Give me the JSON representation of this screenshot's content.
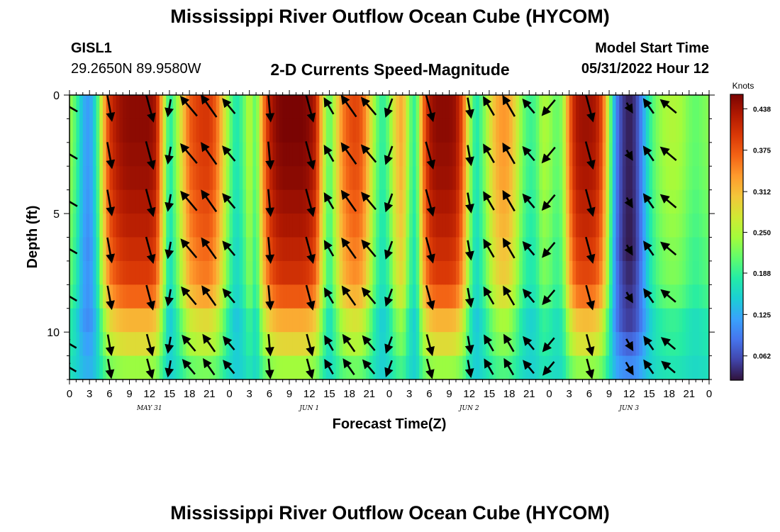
{
  "header": {
    "title": "Mississippi River Outflow Ocean Cube (HYCOM)",
    "station_id": "GISL1",
    "station_coords": "29.2650N  89.9580W",
    "model_start_label": "Model Start Time",
    "model_start_value": "05/31/2022 Hour 12"
  },
  "footer": {
    "title": "Mississippi River Outflow Ocean Cube (HYCOM)"
  },
  "chart_data": {
    "type": "heatmap",
    "title": "2-D Currents Speed-Magnitude",
    "xlabel": "Forecast Time(Z)",
    "ylabel": "Depth (ft)",
    "x_tick_labels": [
      "0",
      "3",
      "6",
      "9",
      "12",
      "15",
      "18",
      "21",
      "0",
      "3",
      "6",
      "9",
      "12",
      "15",
      "18",
      "21",
      "0",
      "3",
      "6",
      "9",
      "12",
      "15",
      "18",
      "21",
      "0",
      "3",
      "6",
      "9",
      "12",
      "15",
      "18",
      "21",
      "0"
    ],
    "day_labels": [
      {
        "label": "MAY 31",
        "hour": 12
      },
      {
        "label": "JUN 1",
        "hour": 36
      },
      {
        "label": "JUN 2",
        "hour": 60
      },
      {
        "label": "JUN 3",
        "hour": 84
      }
    ],
    "x_range_hours": [
      0,
      96
    ],
    "y_ticks": [
      0,
      5,
      10
    ],
    "y_range_ft": [
      0,
      12
    ],
    "depth_levels_ft": [
      0.5,
      1.5,
      2.5,
      3.5,
      4.5,
      5.5,
      6.5,
      7.5,
      8.5,
      9.5,
      10.5,
      11.5
    ],
    "colorbar": {
      "unit": "Knots",
      "tick_labels": [
        "0.438",
        "0.375",
        "0.312",
        "0.250",
        "0.188",
        "0.125",
        "0.062"
      ],
      "tick_values": [
        0.438,
        0.375,
        0.312,
        0.25,
        0.188,
        0.125,
        0.062
      ],
      "range": [
        0.025,
        0.46
      ]
    },
    "colors": {
      "stops": [
        "#30123b",
        "#4145ab",
        "#4675ed",
        "#39a2fc",
        "#1bcfd4",
        "#24eca6",
        "#61fc6c",
        "#a4fc3b",
        "#d1e834",
        "#f3c63a",
        "#fe9b2d",
        "#f36315",
        "#d93806",
        "#b11901",
        "#7a0403"
      ]
    },
    "surface_speed_knots_by_hour": [
      [
        0,
        0.24
      ],
      [
        1,
        0.2
      ],
      [
        2,
        0.13
      ],
      [
        3,
        0.11
      ],
      [
        4,
        0.17
      ],
      [
        5,
        0.3
      ],
      [
        6,
        0.4
      ],
      [
        7,
        0.43
      ],
      [
        8,
        0.445
      ],
      [
        9,
        0.45
      ],
      [
        10,
        0.45
      ],
      [
        11,
        0.45
      ],
      [
        12,
        0.45
      ],
      [
        13,
        0.43
      ],
      [
        14,
        0.3
      ],
      [
        15,
        0.17
      ],
      [
        16,
        0.23
      ],
      [
        17,
        0.3
      ],
      [
        18,
        0.37
      ],
      [
        19,
        0.39
      ],
      [
        20,
        0.4
      ],
      [
        21,
        0.4
      ],
      [
        22,
        0.37
      ],
      [
        23,
        0.3
      ],
      [
        24,
        0.22
      ],
      [
        25,
        0.17
      ],
      [
        26,
        0.2
      ],
      [
        27,
        0.26
      ],
      [
        28,
        0.2
      ],
      [
        29,
        0.34
      ],
      [
        30,
        0.42
      ],
      [
        31,
        0.45
      ],
      [
        32,
        0.46
      ],
      [
        33,
        0.46
      ],
      [
        34,
        0.46
      ],
      [
        35,
        0.46
      ],
      [
        36,
        0.45
      ],
      [
        37,
        0.42
      ],
      [
        38,
        0.29
      ],
      [
        39,
        0.2
      ],
      [
        40,
        0.28
      ],
      [
        41,
        0.35
      ],
      [
        42,
        0.38
      ],
      [
        43,
        0.39
      ],
      [
        44,
        0.37
      ],
      [
        45,
        0.3
      ],
      [
        46,
        0.22
      ],
      [
        47,
        0.18
      ],
      [
        48,
        0.22
      ],
      [
        49,
        0.3
      ],
      [
        50,
        0.33
      ],
      [
        51,
        0.22
      ],
      [
        52,
        0.18
      ],
      [
        53,
        0.35
      ],
      [
        54,
        0.43
      ],
      [
        55,
        0.45
      ],
      [
        56,
        0.45
      ],
      [
        57,
        0.45
      ],
      [
        58,
        0.44
      ],
      [
        59,
        0.38
      ],
      [
        60,
        0.25
      ],
      [
        61,
        0.17
      ],
      [
        62,
        0.21
      ],
      [
        63,
        0.27
      ],
      [
        64,
        0.32
      ],
      [
        65,
        0.34
      ],
      [
        66,
        0.33
      ],
      [
        67,
        0.28
      ],
      [
        68,
        0.22
      ],
      [
        69,
        0.19
      ],
      [
        70,
        0.2
      ],
      [
        71,
        0.25
      ],
      [
        72,
        0.24
      ],
      [
        73,
        0.21
      ],
      [
        74,
        0.23
      ],
      [
        75,
        0.36
      ],
      [
        76,
        0.43
      ],
      [
        77,
        0.44
      ],
      [
        78,
        0.44
      ],
      [
        79,
        0.43
      ],
      [
        80,
        0.38
      ],
      [
        81,
        0.24
      ],
      [
        82,
        0.1
      ],
      [
        83,
        0.05
      ],
      [
        84,
        0.03
      ],
      [
        85,
        0.05
      ],
      [
        86,
        0.11
      ],
      [
        87,
        0.18
      ],
      [
        88,
        0.22
      ],
      [
        89,
        0.24
      ],
      [
        90,
        0.25
      ],
      [
        91,
        0.25
      ],
      [
        92,
        0.24
      ],
      [
        93,
        0.22
      ],
      [
        94,
        0.21
      ],
      [
        95,
        0.22
      ],
      [
        96,
        0.23
      ]
    ],
    "depth_factors": [
      1.0,
      1.0,
      0.99,
      0.98,
      0.96,
      0.94,
      0.91,
      0.86,
      0.77,
      0.64,
      0.5,
      0.33
    ],
    "depth_offsets": [
      0,
      0,
      0,
      0,
      0,
      0,
      0,
      0.01,
      0.02,
      0.03,
      0.06,
      0.09
    ],
    "arrow_hours": [
      0,
      6,
      12,
      15,
      18,
      21,
      24,
      30,
      36,
      39,
      42,
      45,
      48,
      54,
      60,
      63,
      66,
      69,
      72,
      78,
      84,
      87,
      90
    ],
    "arrow_direction_deg_by_hour": [
      [
        0,
        300
      ],
      [
        6,
        170
      ],
      [
        12,
        165
      ],
      [
        15,
        190
      ],
      [
        18,
        320
      ],
      [
        21,
        325
      ],
      [
        24,
        320
      ],
      [
        30,
        175
      ],
      [
        36,
        165
      ],
      [
        39,
        330
      ],
      [
        42,
        325
      ],
      [
        45,
        320
      ],
      [
        48,
        200
      ],
      [
        54,
        165
      ],
      [
        60,
        170
      ],
      [
        63,
        330
      ],
      [
        66,
        330
      ],
      [
        69,
        320
      ],
      [
        72,
        220
      ],
      [
        78,
        165
      ],
      [
        84,
        150
      ],
      [
        87,
        325
      ],
      [
        90,
        310
      ]
    ]
  }
}
